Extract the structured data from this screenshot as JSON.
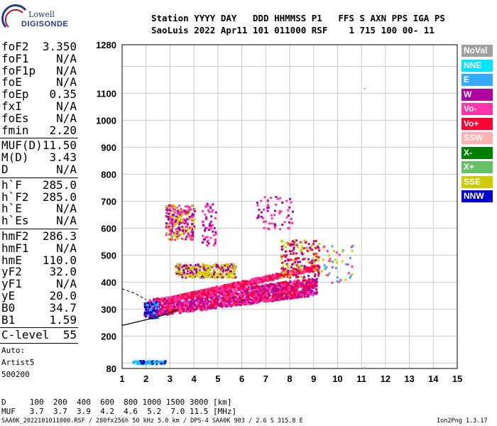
{
  "logo": {
    "line1": "Lowell",
    "line2": "DIGISONDE"
  },
  "header": {
    "line1": "Station YYYY DAY   DDD HHMMSS P1   FFS S AXN PPS IGA PS",
    "line2": "SaoLuis 2022 Apr11 101 011000 RSF    1 715 100 00- 11"
  },
  "parameters": {
    "group1": [
      {
        "label": "foF2",
        "value": "3.350"
      },
      {
        "label": "foF1",
        "value": "N/A"
      },
      {
        "label": "foF1p",
        "value": "N/A"
      },
      {
        "label": "foE",
        "value": "N/A"
      },
      {
        "label": "foEp",
        "value": "0.35"
      },
      {
        "label": "fxI",
        "value": "N/A"
      },
      {
        "label": "foEs",
        "value": "N/A"
      },
      {
        "label": "fmin",
        "value": "2.20"
      }
    ],
    "group2": [
      {
        "label": "MUF(D)",
        "value": "11.50"
      },
      {
        "label": "M(D)",
        "value": "3.43"
      },
      {
        "label": "D",
        "value": "N/A"
      }
    ],
    "group3": [
      {
        "label": "h`F",
        "value": "285.0"
      },
      {
        "label": "h`F2",
        "value": "285.0"
      },
      {
        "label": "h`E",
        "value": "N/A"
      },
      {
        "label": "h`Es",
        "value": "N/A"
      }
    ],
    "group4": [
      {
        "label": "hmF2",
        "value": "286.3"
      },
      {
        "label": "hmF1",
        "value": "N/A"
      },
      {
        "label": "hmE",
        "value": "110.0"
      },
      {
        "label": "yF2",
        "value": "32.0"
      },
      {
        "label": "yF1",
        "value": "N/A"
      },
      {
        "label": "yE",
        "value": "20.0"
      },
      {
        "label": "B0",
        "value": "34.7"
      },
      {
        "label": "B1",
        "value": "1.59"
      }
    ],
    "clevel": {
      "label": "C-level",
      "value": "55"
    },
    "auto": [
      "Auto:",
      "Artist5",
      "500200"
    ]
  },
  "legend": [
    {
      "label": "NoVal",
      "color": "#a0a0a0"
    },
    {
      "label": "NNE",
      "color": "#00e5ff"
    },
    {
      "label": "E",
      "color": "#33aaff"
    },
    {
      "label": "W",
      "color": "#b000a0"
    },
    {
      "label": "Vo-",
      "color": "#ff33aa"
    },
    {
      "label": "Vo+",
      "color": "#ff0033"
    },
    {
      "label": "SSW",
      "color": "#ffb0b0"
    },
    {
      "label": "X-",
      "color": "#008000"
    },
    {
      "label": "X+",
      "color": "#66c066"
    },
    {
      "label": "SSE",
      "color": "#cccc00"
    },
    {
      "label": "NNW",
      "color": "#0000cc"
    }
  ],
  "footer": {
    "d_line": "D     100  200  400  600  800 1000 1500 3000 [km]",
    "muf_line": "MUF   3.7  3.7  3.9  4.2  4.6  5.2  7.0 11.5 [MHz]",
    "file_line": "SAA0K_2022101011000.RSF / 280fx256h 50 kHz 5.0 km / DPS-4 SAA0K 903 / 2.6 S 315.8 E",
    "version": "Ion2Png 1.3.17"
  },
  "chart_data": {
    "type": "scatter",
    "xlim": [
      1,
      15
    ],
    "xticks": [
      "1",
      "2",
      "3",
      "4",
      "5",
      "6",
      "7",
      "8",
      "9",
      "10",
      "11",
      "12",
      "13",
      "14",
      "15"
    ],
    "ylim": [
      80,
      1280
    ],
    "yticks": [
      "80",
      "200",
      "300",
      "400",
      "500",
      "600",
      "700",
      "800",
      "900",
      "1000",
      "1100",
      "1280"
    ],
    "grid": true,
    "profile_line": {
      "x": [
        1.0,
        1.6,
        2.2,
        2.8,
        3.35
      ],
      "y": [
        240,
        252,
        265,
        280,
        300
      ]
    },
    "profile_dashed": {
      "x": [
        1.0,
        1.5,
        2.0
      ],
      "y": [
        375,
        360,
        335
      ]
    },
    "clusters": [
      {
        "name": "F-trace",
        "x": [
          2.1,
          9.1
        ],
        "y": [
          275,
          420
        ],
        "slope": 80,
        "colors": [
          "#ff0033",
          "#ff33aa",
          "#b000a0"
        ],
        "n": 1800
      },
      {
        "name": "F-trace-upper",
        "x": [
          3.0,
          9.2
        ],
        "y": [
          330,
          470
        ],
        "slope": 120,
        "colors": [
          "#ff0033",
          "#ff33aa"
        ],
        "n": 700
      },
      {
        "name": "SSE-band",
        "x": [
          3.2,
          5.7
        ],
        "y": [
          420,
          470
        ],
        "slope": 0,
        "colors": [
          "#cccc00",
          "#cccc00",
          "#b000a0"
        ],
        "n": 260
      },
      {
        "name": "SSE-high",
        "x": [
          7.6,
          9.2
        ],
        "y": [
          420,
          560
        ],
        "slope": 0,
        "colors": [
          "#cccc00",
          "#ff0033",
          "#b000a0"
        ],
        "n": 200
      },
      {
        "name": "NNW-low",
        "x": [
          1.9,
          2.5
        ],
        "y": [
          270,
          330
        ],
        "slope": 0,
        "colors": [
          "#0000cc",
          "#0000cc",
          "#33aaff",
          "#b000a0"
        ],
        "n": 160
      },
      {
        "name": "multi-hop",
        "x": [
          2.8,
          4.0
        ],
        "y": [
          560,
          690
        ],
        "slope": 0,
        "colors": [
          "#b000a0",
          "#ff33aa",
          "#cccc00"
        ],
        "n": 260
      },
      {
        "name": "multi-hop-2",
        "x": [
          4.3,
          4.9
        ],
        "y": [
          540,
          700
        ],
        "slope": 0,
        "colors": [
          "#b000a0",
          "#ff33aa"
        ],
        "n": 60
      },
      {
        "name": "multi-hop-3",
        "x": [
          6.6,
          8.1
        ],
        "y": [
          600,
          720
        ],
        "slope": 0,
        "colors": [
          "#b000a0",
          "#ff33aa"
        ],
        "n": 60
      },
      {
        "name": "Es-low",
        "x": [
          1.4,
          2.8
        ],
        "y": [
          100,
          112
        ],
        "slope": 0,
        "colors": [
          "#00e5ff",
          "#33aaff",
          "#0000cc"
        ],
        "n": 90
      },
      {
        "name": "scatter-right",
        "x": [
          9.3,
          10.6
        ],
        "y": [
          400,
          540
        ],
        "slope": 0,
        "colors": [
          "#cccc00",
          "#ff33aa",
          "#33aaff"
        ],
        "n": 45
      }
    ]
  }
}
